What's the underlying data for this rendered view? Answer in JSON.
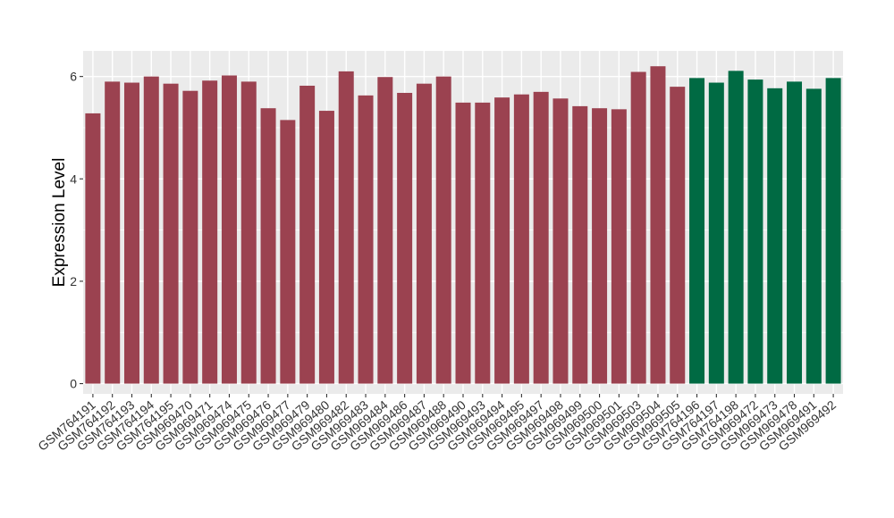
{
  "chart_data": {
    "type": "bar",
    "title": "",
    "xlabel": "",
    "ylabel": "Expression Level",
    "ylim": [
      -0.2,
      6.5
    ],
    "y_ticks": [
      0,
      2,
      4,
      6
    ],
    "grid": true,
    "legend": "none",
    "categories": [
      "GSM764191",
      "GSM764192",
      "GSM764193",
      "GSM764194",
      "GSM764195",
      "GSM969470",
      "GSM969471",
      "GSM969474",
      "GSM969475",
      "GSM969476",
      "GSM969477",
      "GSM969479",
      "GSM969480",
      "GSM969482",
      "GSM969483",
      "GSM969484",
      "GSM969486",
      "GSM969487",
      "GSM969488",
      "GSM969490",
      "GSM969493",
      "GSM969494",
      "GSM969495",
      "GSM969497",
      "GSM969498",
      "GSM969499",
      "GSM969500",
      "GSM969501",
      "GSM969503",
      "GSM969504",
      "GSM969505",
      "GSM764196",
      "GSM764197",
      "GSM764198",
      "GSM969472",
      "GSM969473",
      "GSM969478",
      "GSM969491",
      "GSM969492"
    ],
    "values": [
      5.28,
      5.9,
      5.88,
      6.0,
      5.86,
      5.72,
      5.92,
      6.02,
      5.9,
      5.38,
      5.15,
      5.82,
      5.33,
      6.1,
      5.63,
      5.99,
      5.68,
      5.86,
      6.0,
      5.49,
      5.49,
      5.59,
      5.65,
      5.7,
      5.57,
      5.42,
      5.38,
      5.36,
      6.09,
      6.2,
      5.8,
      5.97,
      5.88,
      6.11,
      5.94,
      5.77,
      5.9,
      5.76,
      5.97
    ],
    "groups": [
      0,
      0,
      0,
      0,
      0,
      0,
      0,
      0,
      0,
      0,
      0,
      0,
      0,
      0,
      0,
      0,
      0,
      0,
      0,
      0,
      0,
      0,
      0,
      0,
      0,
      0,
      0,
      0,
      0,
      0,
      0,
      1,
      1,
      1,
      1,
      1,
      1,
      1,
      1
    ],
    "colors": [
      "#9b4250",
      "#006a43"
    ],
    "panel_background": "#ebebeb",
    "grid_color": "#ffffff"
  }
}
